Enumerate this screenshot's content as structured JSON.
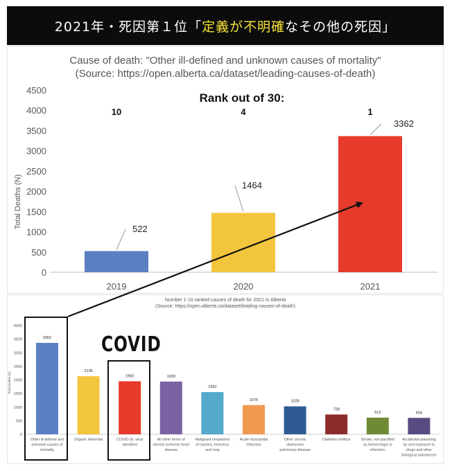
{
  "banner": {
    "prefix": "2021年・死因第１位「",
    "highlight": "定義が不明確",
    "suffix": "なその他の死因」"
  },
  "covid_label": "COVID",
  "colors": {
    "banner_bg": "#0c0c0c",
    "banner_text": "#ffffff",
    "banner_highlight": "#f6e23a",
    "bar_2019": "#5a7fc2",
    "bar_2020": "#f3c53c",
    "bar_2021": "#e63a2a"
  },
  "chart_data": [
    {
      "type": "bar",
      "title": "Cause of death: \"Other ill-defined and unknown causes of mortality\"",
      "subtitle": "(Source: https://open.alberta.ca/dataset/leading-causes-of-death)",
      "ylabel": "Total Deaths (N)",
      "xlabel": "",
      "ylim": [
        0,
        4500
      ],
      "yticks": [
        "0",
        "500",
        "1000",
        "1500",
        "2000",
        "2500",
        "3000",
        "3500",
        "4000",
        "4500"
      ],
      "categories": [
        "2019",
        "2020",
        "2021"
      ],
      "values": [
        522,
        1464,
        3362
      ],
      "value_labels": [
        "522",
        "1464",
        "3362"
      ],
      "colors": [
        "#5a7fc2",
        "#f3c53c",
        "#e63a2a"
      ],
      "annotation_title": "Rank out of 30:",
      "ranks": [
        "10",
        "4",
        "1"
      ],
      "grid": false
    },
    {
      "type": "bar",
      "title": "Number 1-10 ranked causes of death for 2021 in Alberta",
      "subtitle": "(Source: https://open.alberta.ca/dataset/leading-causes-of-death)",
      "ylabel": "Total Deaths (N)",
      "xlabel": "",
      "ylim": [
        0,
        4000
      ],
      "yticks": [
        "0",
        "500",
        "1000",
        "1500",
        "2000",
        "2500",
        "3000",
        "3500",
        "4000"
      ],
      "categories": [
        [
          "Other ill-defined and",
          "unknown causes of",
          "mortality"
        ],
        [
          "Organic dementia"
        ],
        [
          "COVID-19, virus",
          "identified"
        ],
        [
          "All other forms of",
          "chronic ischemic heart",
          "disease"
        ],
        [
          "Malignant neoplasms",
          "of trachea, bronchus",
          "and lung"
        ],
        [
          "Acute myocardial",
          "infarction"
        ],
        [
          "Other chronic",
          "obstructive",
          "pulmonary disease"
        ],
        [
          "Diabetes mellitus"
        ],
        [
          "Stroke, not specified",
          "as hemorrhage or",
          "infarction"
        ],
        [
          "Accidental poisoning",
          "by and exposure to",
          "drugs and other",
          "biological substances"
        ]
      ],
      "values": [
        3362,
        2135,
        1950,
        1939,
        1552,
        1075,
        1028,
        728,
        612,
        604
      ],
      "value_labels": [
        "3362",
        "2135",
        "1950",
        "1939",
        "1552",
        "1075",
        "1028",
        "728",
        "612",
        "604"
      ],
      "colors": [
        "#5a7fc2",
        "#f3c53c",
        "#e63a2a",
        "#7a62a3",
        "#55a9cb",
        "#f09a51",
        "#2e5b94",
        "#8c2c2a",
        "#6f8a35",
        "#5a4a82"
      ],
      "grid": false
    }
  ]
}
